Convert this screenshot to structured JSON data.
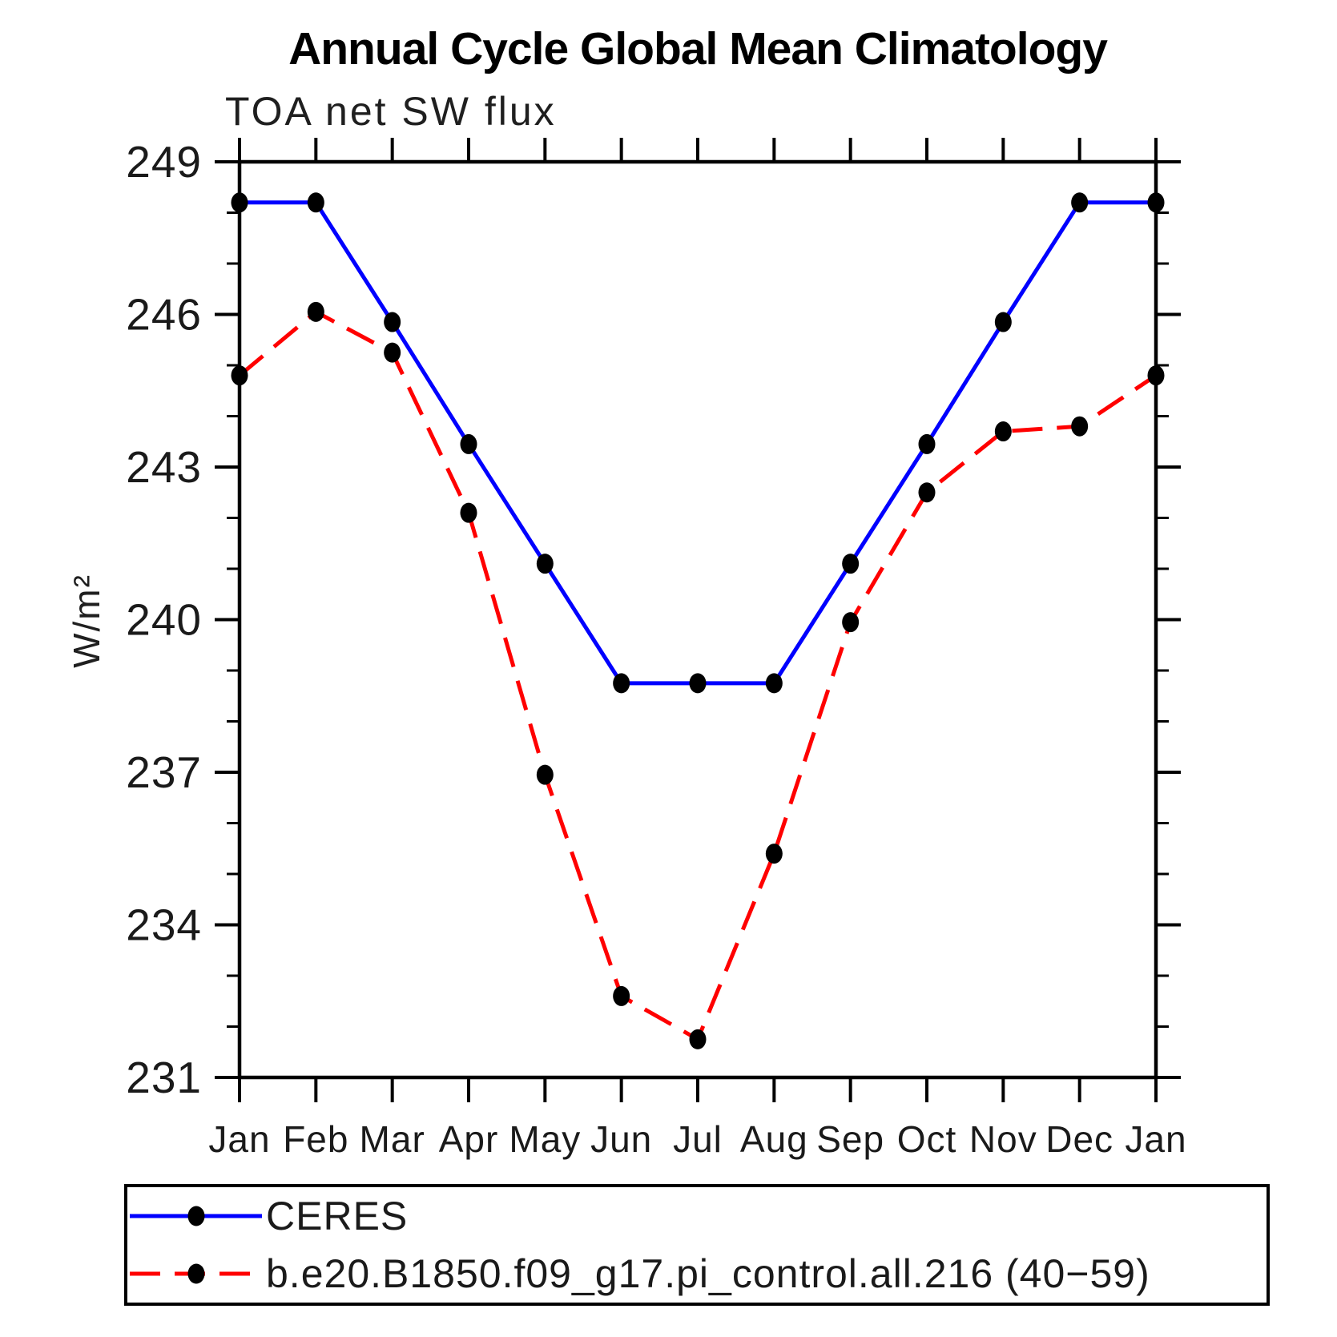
{
  "title": "Annual Cycle Global Mean Climatology",
  "chart_data": {
    "type": "line",
    "title": "TOA net SW flux",
    "categories": [
      "Jan",
      "Feb",
      "Mar",
      "Apr",
      "May",
      "Jun",
      "Jul",
      "Aug",
      "Sep",
      "Oct",
      "Nov",
      "Dec",
      "Jan"
    ],
    "series": [
      {
        "name": "CERES",
        "color": "#0000ff",
        "line_style": "solid",
        "marker": "filled-circle",
        "marker_color": "#000000",
        "values": [
          248.2,
          248.2,
          245.85,
          243.45,
          241.1,
          238.75,
          238.75,
          238.75,
          241.1,
          243.45,
          245.85,
          248.2,
          248.2
        ]
      },
      {
        "name": "b.e20.B1850.f09_g17.pi_control.all.216 (40−59)",
        "color": "#ff0000",
        "line_style": "dashed",
        "marker": "filled-circle",
        "marker_color": "#000000",
        "values": [
          244.8,
          246.05,
          245.25,
          242.1,
          236.95,
          232.6,
          231.75,
          235.4,
          239.95,
          242.5,
          243.7,
          243.8,
          244.8
        ]
      }
    ],
    "xlabel": "",
    "ylabel": "W/m²",
    "ylim": [
      231,
      249
    ],
    "yticks_major": [
      249,
      246,
      243,
      240,
      237,
      234,
      231
    ],
    "ytick_minor_step": 1,
    "grid": false,
    "legend_position": "bottom-left-box",
    "axis_color": "#000000",
    "text_color": "#1a1a1a",
    "background": "#ffffff"
  }
}
